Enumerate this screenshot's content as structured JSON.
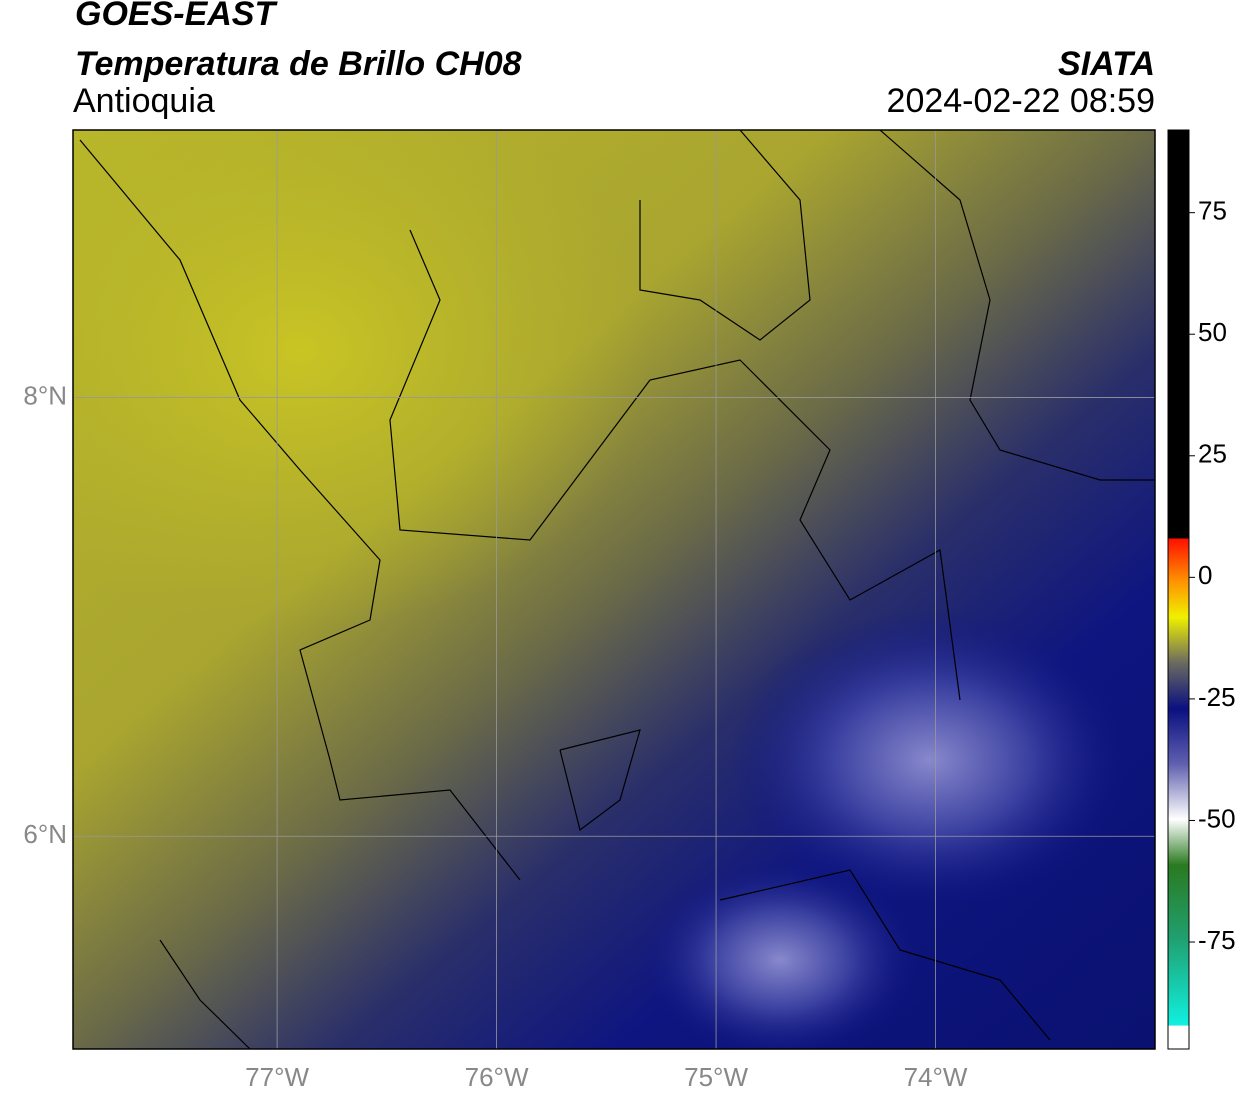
{
  "header": {
    "title": "GOES-EAST",
    "subtitle": "Temperatura de Brillo CH08",
    "region": "Antioquia",
    "source": "SIATA",
    "datetime": "2024-02-22 08:59"
  },
  "map": {
    "xlim": [
      -77.93,
      -73.0
    ],
    "ylim": [
      5.03,
      9.22
    ],
    "xticks": [
      {
        "value": -77,
        "label": "77°W"
      },
      {
        "value": -76,
        "label": "76°W"
      },
      {
        "value": -75,
        "label": "75°W"
      },
      {
        "value": -74,
        "label": "74°W"
      }
    ],
    "yticks": [
      {
        "value": 8,
        "label": "8°N"
      },
      {
        "value": 6,
        "label": "6°N"
      }
    ],
    "grid": true
  },
  "colorbar": {
    "lim": [
      -97,
      92
    ],
    "ticks": [
      75,
      50,
      25,
      0,
      -25,
      -50,
      -75
    ]
  }
}
